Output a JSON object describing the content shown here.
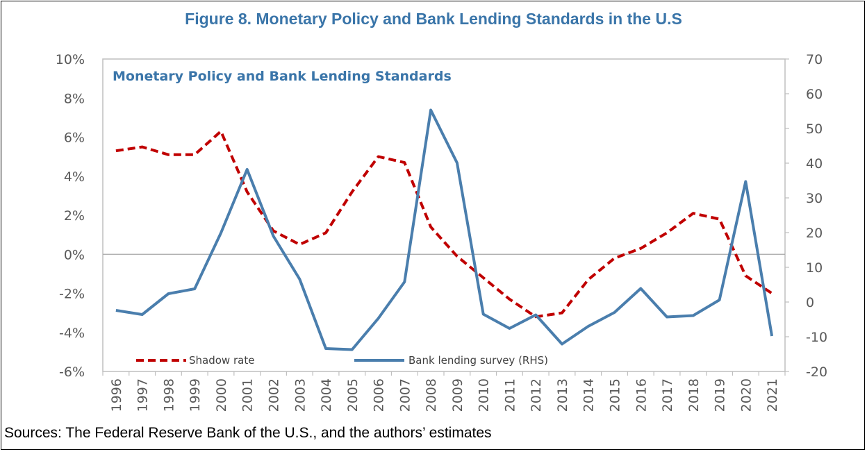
{
  "figure_title": "Figure 8. Monetary Policy and Bank Lending Standards in the U.S",
  "footnote": "Sources: The Federal Reserve Bank of the U.S., and the authors’ estimates",
  "colors": {
    "title": "#3A75A9",
    "shadow_rate": "#C00000",
    "bank_lending": "#4A7EAD",
    "plot_border": "#BFBFBF",
    "zero_line": "#A6A6A6",
    "tick_text": "#595959"
  },
  "chart_data": {
    "type": "line",
    "title": "Monetary Policy and Bank Lending Standards",
    "x": [
      "1996",
      "1997",
      "1998",
      "1999",
      "2000",
      "2001",
      "2002",
      "2003",
      "2004",
      "2005",
      "2006",
      "2007",
      "2008",
      "2009",
      "2010",
      "2011",
      "2012",
      "2013",
      "2014",
      "2015",
      "2016",
      "2017",
      "2018",
      "2019",
      "2020",
      "2021"
    ],
    "series": [
      {
        "name": "Shadow rate",
        "axis": "left",
        "style": "dashed",
        "values": [
          5.3,
          5.5,
          5.1,
          5.1,
          6.3,
          3.2,
          1.2,
          0.5,
          1.1,
          3.2,
          5.0,
          4.7,
          1.4,
          -0.1,
          -1.2,
          -2.3,
          -3.2,
          -3.0,
          -1.3,
          -0.2,
          0.3,
          1.1,
          2.1,
          1.8,
          -1.1,
          -2.0
        ]
      },
      {
        "name": "Bank lending survey (RHS)",
        "axis": "right",
        "style": "solid",
        "values": [
          -2.4,
          -3.6,
          2.4,
          3.8,
          19.9,
          38.2,
          19.0,
          6.6,
          -13.4,
          -13.7,
          -4.7,
          5.8,
          55.3,
          40.1,
          -3.5,
          -7.6,
          -3.7,
          -12.1,
          -7.0,
          -3.0,
          3.9,
          -4.3,
          -3.9,
          0.6,
          34.7,
          -9.8
        ]
      }
    ],
    "y_left": {
      "ylim": [
        -6,
        10
      ],
      "ticks": [
        -6,
        -4,
        -2,
        0,
        2,
        4,
        6,
        8,
        10
      ],
      "tick_labels": [
        "-6%",
        "-4%",
        "-2%",
        "0%",
        "2%",
        "4%",
        "6%",
        "8%",
        "10%"
      ]
    },
    "y_right": {
      "ylim": [
        -20,
        70
      ],
      "ticks": [
        -20,
        -10,
        0,
        10,
        20,
        30,
        40,
        50,
        60,
        70
      ],
      "tick_labels": [
        "-20",
        "-10",
        "0",
        "10",
        "20",
        "30",
        "40",
        "50",
        "60",
        "70"
      ]
    },
    "xlabel": "",
    "ylabel": "",
    "legend_position": "bottom-left",
    "grid": false
  }
}
